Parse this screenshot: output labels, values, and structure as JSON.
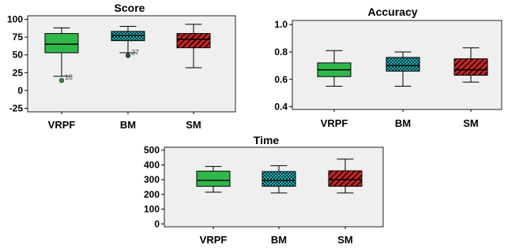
{
  "chart_data": [
    {
      "type": "box",
      "title": "Score",
      "categories": [
        "VRPF",
        "BM",
        "SM"
      ],
      "ylim": [
        -30,
        105
      ],
      "yticks": [
        "-25",
        "0",
        "25",
        "50",
        "75",
        "100"
      ],
      "ytick_values": [
        -25,
        0,
        25,
        50,
        75,
        100
      ],
      "series": [
        {
          "min": 20,
          "q1": 53,
          "median": 65,
          "q3": 80,
          "max": 88,
          "outliers": [
            {
              "value": 14,
              "label": "18"
            }
          ]
        },
        {
          "min": 53,
          "q1": 70,
          "median": 77,
          "q3": 83,
          "max": 90,
          "outliers": [
            {
              "value": 49,
              "label": "27"
            }
          ]
        },
        {
          "min": 32,
          "q1": 60,
          "median": 72,
          "q3": 80,
          "max": 93,
          "outliers": []
        }
      ]
    },
    {
      "type": "box",
      "title": "Accuracy",
      "categories": [
        "VRPF",
        "BM",
        "SM"
      ],
      "ylim": [
        0.38,
        1.03
      ],
      "yticks": [
        "0.4",
        "0.6",
        "0.8",
        "1.0"
      ],
      "ytick_values": [
        0.4,
        0.6,
        0.8,
        1.0
      ],
      "series": [
        {
          "min": 0.55,
          "q1": 0.62,
          "median": 0.67,
          "q3": 0.72,
          "max": 0.81,
          "outliers": []
        },
        {
          "min": 0.55,
          "q1": 0.66,
          "median": 0.7,
          "q3": 0.76,
          "max": 0.8,
          "outliers": []
        },
        {
          "min": 0.58,
          "q1": 0.63,
          "median": 0.67,
          "q3": 0.75,
          "max": 0.83,
          "outliers": []
        }
      ]
    },
    {
      "type": "box",
      "title": "Time",
      "categories": [
        "VRPF",
        "BM",
        "SM"
      ],
      "ylim": [
        -20,
        520
      ],
      "yticks": [
        "0",
        "100",
        "200",
        "300",
        "400",
        "500"
      ],
      "ytick_values": [
        0,
        100,
        200,
        300,
        400,
        500
      ],
      "series": [
        {
          "min": 215,
          "q1": 255,
          "median": 295,
          "q3": 358,
          "max": 390,
          "outliers": []
        },
        {
          "min": 210,
          "q1": 255,
          "median": 295,
          "q3": 355,
          "max": 395,
          "outliers": []
        },
        {
          "min": 210,
          "q1": 255,
          "median": 300,
          "q3": 360,
          "max": 440,
          "outliers": []
        }
      ]
    }
  ],
  "colors": {
    "plot_background": "#efefef",
    "frame": "#222222",
    "vrpf_fill": "#2eb84a",
    "bm_fill": "#1ab0b5",
    "bm_pattern": "#0a3a3c",
    "sm_fill": "#c8282a",
    "sm_pattern": "#3c0808",
    "outlier": "#2e8b3a"
  }
}
